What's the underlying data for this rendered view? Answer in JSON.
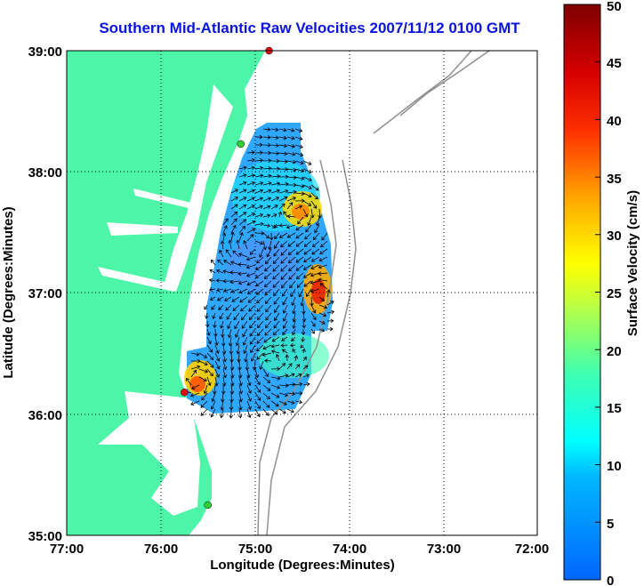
{
  "chart_data": {
    "type": "heatmap",
    "title": "Southern Mid-Atlantic Raw Velocities 2007/11/12 0100 GMT",
    "xlabel": "Longitude (Degrees:Minutes)",
    "ylabel": "Latitude (Degrees:Minutes)",
    "xlim": [
      -77,
      -72
    ],
    "ylim": [
      35,
      39
    ],
    "x_tick_labels": [
      "77:00",
      "76:00",
      "75:00",
      "74:00",
      "73:00",
      "72:00"
    ],
    "y_tick_labels": [
      "35:00",
      "36:00",
      "37:00",
      "38:00",
      "39:00"
    ],
    "grid": true,
    "colorbar": {
      "label": "Surface Velocity (cm/s)",
      "range": [
        0,
        50
      ],
      "tick_labels": [
        "0",
        "5",
        "10",
        "15",
        "20",
        "25",
        "30",
        "35",
        "40",
        "45",
        "50"
      ]
    },
    "velocity_hotspots": [
      {
        "lon": -74.5,
        "lat": 37.65,
        "speed": 30
      },
      {
        "lon": -74.3,
        "lat": 37.0,
        "speed": 40
      },
      {
        "lon": -75.6,
        "lat": 36.3,
        "speed": 35
      },
      {
        "lon": -75.1,
        "lat": 36.55,
        "speed": 20
      }
    ],
    "stations": [
      {
        "lon": -74.85,
        "lat": 39.0,
        "color": "#e01010"
      },
      {
        "lon": -75.15,
        "lat": 38.23,
        "color": "#33cc33"
      },
      {
        "lon": -75.75,
        "lat": 36.18,
        "color": "#e01010"
      },
      {
        "lon": -75.5,
        "lat": 35.25,
        "color": "#33cc33"
      }
    ]
  }
}
